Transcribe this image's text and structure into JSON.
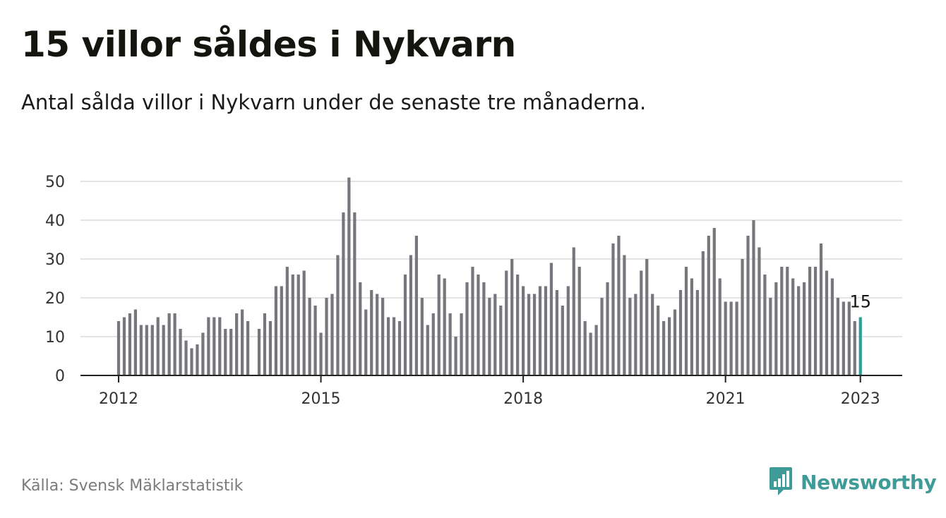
{
  "title": "15 villor såldes i Nykvarn",
  "subtitle": "Antal sålda villor i Nykvarn under de senaste tre månaderna.",
  "source": "Källa: Svensk Mäklarstatistik",
  "brand": {
    "name": "Newsworthy",
    "icon": "newsworthy-logo-icon",
    "color": "#3e9b97"
  },
  "colors": {
    "bar": "#76767c",
    "highlight": "#2a9d96",
    "grid": "#dcdcdc",
    "axis": "#222222"
  },
  "chart_data": {
    "type": "bar",
    "title": "15 villor såldes i Nykvarn",
    "xlabel": "",
    "ylabel": "",
    "ylim": [
      0,
      50
    ],
    "yticks": [
      0,
      10,
      20,
      30,
      40,
      50
    ],
    "xticks": [
      {
        "label": "2012",
        "date": "2012-01"
      },
      {
        "label": "2015",
        "date": "2015-01"
      },
      {
        "label": "2018",
        "date": "2018-01"
      },
      {
        "label": "2021",
        "date": "2021-01"
      },
      {
        "label": "2023",
        "date": "2023-01"
      }
    ],
    "grid": true,
    "highlight": {
      "date": "2023-01",
      "value": 15,
      "label": "15"
    },
    "points": [
      [
        "2012-01",
        14
      ],
      [
        "2012-02",
        15
      ],
      [
        "2012-03",
        16
      ],
      [
        "2012-04",
        17
      ],
      [
        "2012-05",
        13
      ],
      [
        "2012-06",
        13
      ],
      [
        "2012-07",
        13
      ],
      [
        "2012-08",
        15
      ],
      [
        "2012-09",
        13
      ],
      [
        "2012-10",
        16
      ],
      [
        "2012-11",
        16
      ],
      [
        "2012-12",
        12
      ],
      [
        "2013-01",
        9
      ],
      [
        "2013-02",
        7
      ],
      [
        "2013-03",
        8
      ],
      [
        "2013-04",
        11
      ],
      [
        "2013-05",
        15
      ],
      [
        "2013-06",
        15
      ],
      [
        "2013-07",
        15
      ],
      [
        "2013-08",
        12
      ],
      [
        "2013-09",
        12
      ],
      [
        "2013-10",
        16
      ],
      [
        "2013-11",
        17
      ],
      [
        "2013-12",
        14
      ],
      [
        "2014-02",
        12
      ],
      [
        "2014-03",
        16
      ],
      [
        "2014-04",
        14
      ],
      [
        "2014-05",
        23
      ],
      [
        "2014-06",
        23
      ],
      [
        "2014-07",
        28
      ],
      [
        "2014-08",
        26
      ],
      [
        "2014-09",
        26
      ],
      [
        "2014-10",
        27
      ],
      [
        "2014-11",
        20
      ],
      [
        "2014-12",
        18
      ],
      [
        "2015-01",
        11
      ],
      [
        "2015-02",
        20
      ],
      [
        "2015-03",
        21
      ],
      [
        "2015-04",
        31
      ],
      [
        "2015-05",
        42
      ],
      [
        "2015-06",
        51
      ],
      [
        "2015-07",
        42
      ],
      [
        "2015-08",
        24
      ],
      [
        "2015-09",
        17
      ],
      [
        "2015-10",
        22
      ],
      [
        "2015-11",
        21
      ],
      [
        "2015-12",
        20
      ],
      [
        "2016-01",
        15
      ],
      [
        "2016-02",
        15
      ],
      [
        "2016-03",
        14
      ],
      [
        "2016-04",
        26
      ],
      [
        "2016-05",
        31
      ],
      [
        "2016-06",
        36
      ],
      [
        "2016-07",
        20
      ],
      [
        "2016-08",
        13
      ],
      [
        "2016-09",
        16
      ],
      [
        "2016-10",
        26
      ],
      [
        "2016-11",
        25
      ],
      [
        "2016-12",
        16
      ],
      [
        "2017-01",
        10
      ],
      [
        "2017-02",
        16
      ],
      [
        "2017-03",
        24
      ],
      [
        "2017-04",
        28
      ],
      [
        "2017-05",
        26
      ],
      [
        "2017-06",
        24
      ],
      [
        "2017-07",
        20
      ],
      [
        "2017-08",
        21
      ],
      [
        "2017-09",
        18
      ],
      [
        "2017-10",
        27
      ],
      [
        "2017-11",
        30
      ],
      [
        "2017-12",
        26
      ],
      [
        "2018-01",
        23
      ],
      [
        "2018-02",
        21
      ],
      [
        "2018-03",
        21
      ],
      [
        "2018-04",
        23
      ],
      [
        "2018-05",
        23
      ],
      [
        "2018-06",
        29
      ],
      [
        "2018-07",
        22
      ],
      [
        "2018-08",
        18
      ],
      [
        "2018-09",
        23
      ],
      [
        "2018-10",
        33
      ],
      [
        "2018-11",
        28
      ],
      [
        "2018-12",
        14
      ],
      [
        "2019-01",
        11
      ],
      [
        "2019-02",
        13
      ],
      [
        "2019-03",
        20
      ],
      [
        "2019-04",
        24
      ],
      [
        "2019-05",
        34
      ],
      [
        "2019-06",
        36
      ],
      [
        "2019-07",
        31
      ],
      [
        "2019-08",
        20
      ],
      [
        "2019-09",
        21
      ],
      [
        "2019-10",
        27
      ],
      [
        "2019-11",
        30
      ],
      [
        "2019-12",
        21
      ],
      [
        "2020-01",
        18
      ],
      [
        "2020-02",
        14
      ],
      [
        "2020-03",
        15
      ],
      [
        "2020-04",
        17
      ],
      [
        "2020-05",
        22
      ],
      [
        "2020-06",
        28
      ],
      [
        "2020-07",
        25
      ],
      [
        "2020-08",
        22
      ],
      [
        "2020-09",
        32
      ],
      [
        "2020-10",
        36
      ],
      [
        "2020-11",
        38
      ],
      [
        "2020-12",
        25
      ],
      [
        "2021-01",
        19
      ],
      [
        "2021-02",
        19
      ],
      [
        "2021-03",
        19
      ],
      [
        "2021-04",
        30
      ],
      [
        "2021-05",
        36
      ],
      [
        "2021-06",
        40
      ],
      [
        "2021-07",
        33
      ],
      [
        "2021-08",
        26
      ],
      [
        "2021-09",
        20
      ],
      [
        "2021-10",
        24
      ],
      [
        "2021-11",
        28
      ],
      [
        "2021-12",
        28
      ],
      [
        "2022-01",
        25
      ],
      [
        "2022-02",
        23
      ],
      [
        "2022-03",
        24
      ],
      [
        "2022-04",
        28
      ],
      [
        "2022-05",
        28
      ],
      [
        "2022-06",
        34
      ],
      [
        "2022-07",
        27
      ],
      [
        "2022-08",
        25
      ],
      [
        "2022-09",
        20
      ],
      [
        "2022-10",
        19
      ],
      [
        "2022-11",
        19
      ],
      [
        "2022-12",
        14
      ],
      [
        "2023-01",
        15
      ]
    ]
  }
}
